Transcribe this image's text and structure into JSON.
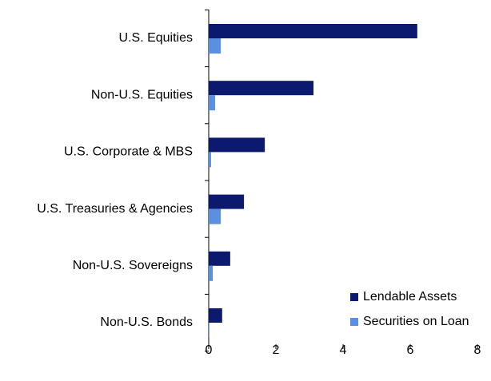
{
  "chart_data": {
    "type": "hbar",
    "categories": [
      "U.S. Equities",
      "Non-U.S. Equities",
      "U.S. Corporate & MBS",
      "U.S. Treasuries & Agencies",
      "Non-U.S. Sovereigns",
      "Non-U.S. Bonds"
    ],
    "series": [
      {
        "name": "Lendable Assets",
        "color": "#0b1a6f",
        "values": [
          6.21,
          3.12,
          1.67,
          1.05,
          0.64,
          0.4
        ]
      },
      {
        "name": "Securities on Loan",
        "color": "#5b8fe0",
        "values": [
          0.36,
          0.19,
          0.07,
          0.36,
          0.12,
          0.02
        ]
      }
    ],
    "xlim": [
      0,
      8
    ],
    "xticks": [
      0,
      2,
      4,
      6,
      8
    ],
    "legend": "lower right"
  }
}
